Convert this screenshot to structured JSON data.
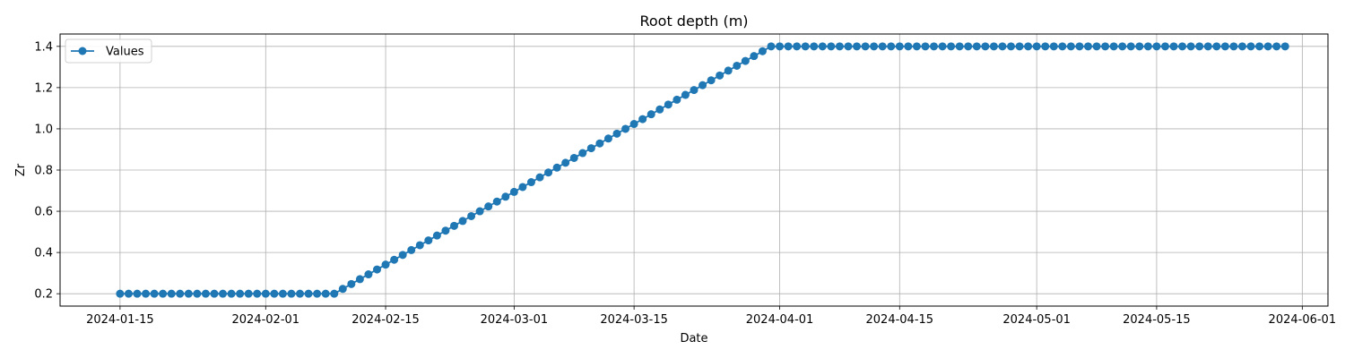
{
  "chart_data": {
    "type": "line",
    "title": "Root depth (m)",
    "xlabel": "Date",
    "ylabel": "Zr",
    "grid": true,
    "legend_position": "top-left",
    "marker": "circle",
    "series_color": "#1f77b4",
    "xlim": [
      "2024-01-08",
      "2024-06-04"
    ],
    "ylim": [
      0.14,
      1.46
    ],
    "x_ticks": [
      "2024-01-15",
      "2024-02-01",
      "2024-02-15",
      "2024-03-01",
      "2024-03-15",
      "2024-04-01",
      "2024-04-15",
      "2024-05-01",
      "2024-05-15",
      "2024-06-01"
    ],
    "y_ticks": [
      0.2,
      0.4,
      0.6,
      0.8,
      1.0,
      1.2,
      1.4
    ],
    "y_tick_labels": [
      "0.2",
      "0.4",
      "0.6",
      "0.8",
      "1.0",
      "1.2",
      "1.4"
    ],
    "series": [
      {
        "name": "Values",
        "segments": [
          {
            "from": "2024-01-15",
            "to": "2024-02-09",
            "y_start": 0.2,
            "y_end": 0.2
          },
          {
            "from": "2024-02-09",
            "to": "2024-03-31",
            "y_start": 0.2,
            "y_end": 1.4
          },
          {
            "from": "2024-03-31",
            "to": "2024-05-30",
            "y_start": 1.4,
            "y_end": 1.4
          }
        ]
      }
    ]
  }
}
